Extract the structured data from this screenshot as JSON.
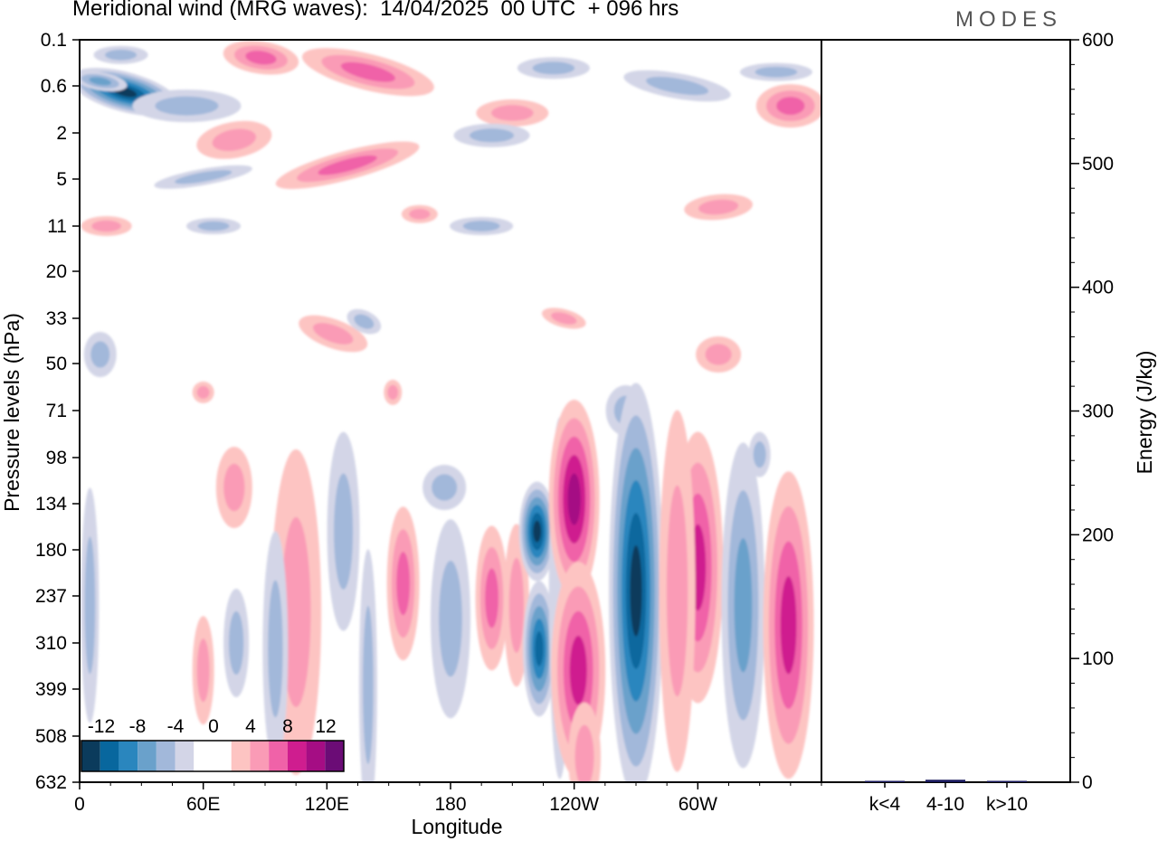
{
  "header": {
    "title": "Meridional wind (MRG waves):  14/04/2025  00 UTC  + 096 hrs",
    "logo": "MODES"
  },
  "chart_data": [
    {
      "type": "heatmap",
      "title": "Meridional wind (MRG waves):  14/04/2025  00 UTC  + 096 hrs",
      "xlabel": "Longitude",
      "ylabel": "Pressure levels (hPa)",
      "x_ticks": [
        "0",
        "60E",
        "120E",
        "180",
        "120W",
        "60W"
      ],
      "x_tick_values": [
        0,
        60,
        120,
        180,
        240,
        300
      ],
      "xlim": [
        0,
        360
      ],
      "y_ticks": [
        "0.1",
        "0.6",
        "2",
        "5",
        "11",
        "20",
        "33",
        "50",
        "71",
        "98",
        "134",
        "180",
        "237",
        "310",
        "399",
        "508",
        "632"
      ],
      "colorbar": {
        "labels": [
          "-12",
          "-8",
          "-4",
          "0",
          "4",
          "8",
          "12"
        ],
        "levels": [
          -14,
          -12,
          -10,
          -8,
          -6,
          -4,
          -2,
          2,
          4,
          6,
          8,
          10,
          12,
          14
        ],
        "colors": [
          "#0b3b5c",
          "#08679e",
          "#2a86be",
          "#6aa1cb",
          "#a2b8da",
          "#d3d5e7",
          "#ffffff",
          "#ffffff",
          "#fdc4c2",
          "#fa9bb6",
          "#f062a8",
          "#cf1d8f",
          "#a50d84",
          "#6b0c76"
        ]
      },
      "features": [
        {
          "lon": 235,
          "p": 130,
          "value": 10
        },
        {
          "lon": 238,
          "p": 95,
          "value": 9
        },
        {
          "lon": 236,
          "p": 360,
          "value": 8
        },
        {
          "lon": 270,
          "p": 215,
          "value": -12
        },
        {
          "lon": 269,
          "p": 330,
          "value": -8
        },
        {
          "lon": 224,
          "p": 160,
          "value": -12
        },
        {
          "lon": 223,
          "p": 330,
          "value": -10
        },
        {
          "lon": 300,
          "p": 200,
          "value": 8
        },
        {
          "lon": 344,
          "p": 280,
          "value": 8
        },
        {
          "lon": 322,
          "p": 250,
          "value": -6
        },
        {
          "lon": 20,
          "p": 0.65,
          "value": -12
        },
        {
          "lon": 90,
          "p": 0.25,
          "value": 6
        },
        {
          "lon": 140,
          "p": 0.35,
          "value": 6
        },
        {
          "lon": 130,
          "p": 4,
          "value": 6
        },
        {
          "lon": 202,
          "p": 220,
          "value": 6
        },
        {
          "lon": 160,
          "p": 220,
          "value": 6
        }
      ]
    },
    {
      "type": "bar",
      "ylabel": "Energy (J/kg)",
      "categories": [
        "k<4",
        "4-10",
        "k>10"
      ],
      "values": [
        0.5,
        2,
        0.5
      ],
      "ylim": [
        0,
        600
      ],
      "y_ticks": [
        "0",
        "100",
        "200",
        "300",
        "400",
        "500",
        "600"
      ],
      "bar_color": "#1a1a5e"
    }
  ]
}
